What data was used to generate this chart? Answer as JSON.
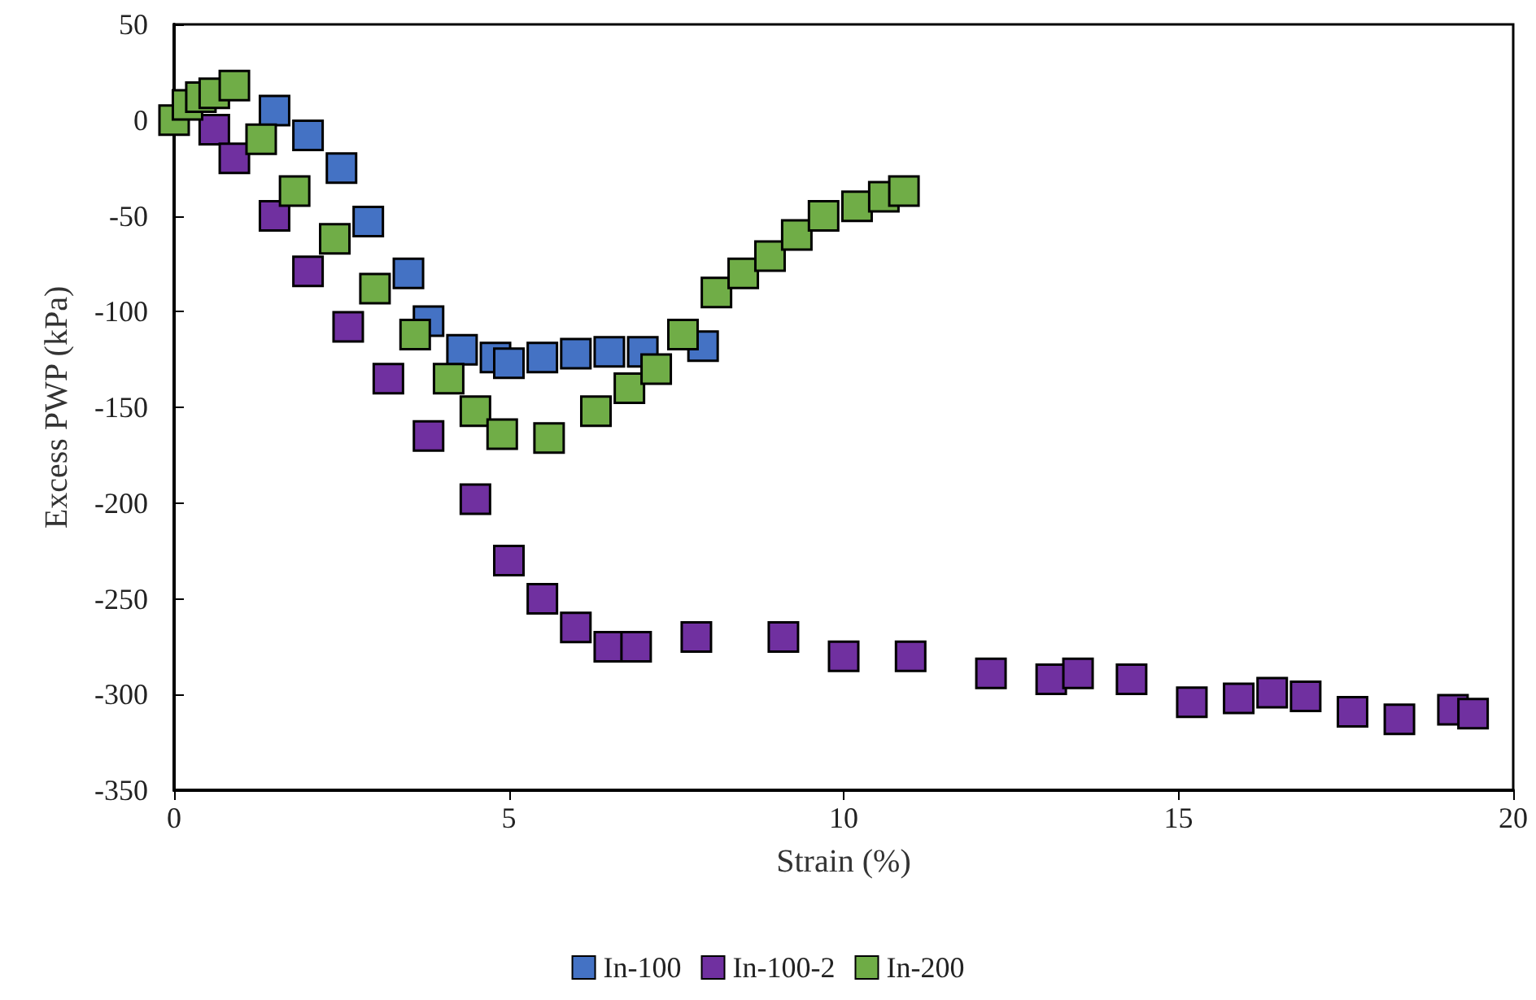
{
  "chart_data": {
    "type": "scatter",
    "xlabel": "Strain (%)",
    "ylabel": "Excess PWP (kPa)",
    "xlim": [
      0,
      20
    ],
    "xticks": [
      0,
      5,
      10,
      15,
      20
    ],
    "ylim": [
      -350,
      50
    ],
    "yticks": [
      -350,
      -300,
      -250,
      -200,
      -150,
      -100,
      -50,
      0,
      50
    ],
    "grid": false,
    "legend": "bottom",
    "marker": "square",
    "series": [
      {
        "name": "In-100",
        "color": "#4472c4",
        "x": [
          1.5,
          2.0,
          2.5,
          2.9,
          3.5,
          3.8,
          4.3,
          4.8,
          5.0,
          5.5,
          6.0,
          6.5,
          7.0,
          7.5,
          7.9
        ],
        "values": [
          5,
          -8,
          -25,
          -53,
          -80,
          -105,
          -120,
          -124,
          -127,
          -124,
          -122,
          -121,
          -121,
          null,
          -118
        ]
      },
      {
        "name": "In-100-2",
        "color": "#7030a0",
        "x": [
          0.6,
          0.9,
          1.5,
          2.0,
          2.6,
          3.2,
          3.8,
          4.5,
          5.0,
          5.5,
          6.0,
          6.5,
          6.9,
          7.8,
          9.1,
          10.0,
          11.0,
          12.2,
          13.1,
          13.5,
          14.3,
          15.2,
          15.9,
          16.4,
          16.9,
          17.6,
          18.3,
          19.1,
          19.4
        ],
        "values": [
          -5,
          -20,
          -50,
          -79,
          -108,
          -135,
          -165,
          -198,
          -230,
          -250,
          -265,
          -275,
          -275,
          -270,
          -270,
          -280,
          -280,
          -289,
          -292,
          -289,
          -292,
          -304,
          -302,
          -299,
          -301,
          -309,
          -313,
          -308,
          -310
        ]
      },
      {
        "name": "In-200",
        "color": "#70ad47",
        "x": [
          0,
          0.2,
          0.4,
          0.6,
          0.9,
          1.3,
          1.8,
          2.4,
          3.0,
          3.6,
          4.1,
          4.5,
          4.9,
          5.6,
          6.3,
          6.8,
          7.2,
          7.6,
          8.1,
          8.5,
          8.9,
          9.3,
          9.7,
          10.2,
          10.6,
          10.9
        ],
        "values": [
          0,
          8,
          12,
          14,
          18,
          -10,
          -37,
          -62,
          -88,
          -112,
          -135,
          -152,
          -164,
          -166,
          -152,
          -140,
          -130,
          -112,
          -90,
          -80,
          -71,
          -60,
          -50,
          -45,
          -40,
          -37
        ]
      }
    ]
  }
}
